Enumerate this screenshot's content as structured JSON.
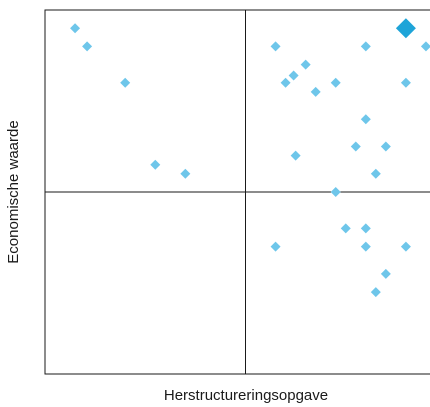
{
  "chart_data": {
    "type": "scatter",
    "title": "",
    "xlabel": "Herstructureringsopgave",
    "ylabel": "Economische waarde",
    "xlim": [
      0,
      10
    ],
    "ylim": [
      0,
      10
    ],
    "grid": false,
    "quadrant_lines": {
      "x": 5,
      "y": 5
    },
    "colors": {
      "points": "#6ec6ea",
      "highlight": "#1ea4d8",
      "axes": "#1a1a1a"
    },
    "points": [
      {
        "x": 0.75,
        "y": 9.5
      },
      {
        "x": 1.05,
        "y": 9.0
      },
      {
        "x": 2.0,
        "y": 8.0
      },
      {
        "x": 2.75,
        "y": 5.75
      },
      {
        "x": 3.5,
        "y": 5.5
      },
      {
        "x": 5.75,
        "y": 9.0
      },
      {
        "x": 6.0,
        "y": 8.0
      },
      {
        "x": 6.2,
        "y": 8.2
      },
      {
        "x": 6.5,
        "y": 8.5
      },
      {
        "x": 6.75,
        "y": 7.75
      },
      {
        "x": 7.25,
        "y": 8.0
      },
      {
        "x": 8.0,
        "y": 9.0
      },
      {
        "x": 9.0,
        "y": 8.0
      },
      {
        "x": 9.5,
        "y": 9.0
      },
      {
        "x": 8.0,
        "y": 7.0
      },
      {
        "x": 7.75,
        "y": 6.25
      },
      {
        "x": 8.5,
        "y": 6.25
      },
      {
        "x": 6.25,
        "y": 6.0
      },
      {
        "x": 8.25,
        "y": 5.5
      },
      {
        "x": 7.25,
        "y": 5.0
      },
      {
        "x": 7.5,
        "y": 4.0
      },
      {
        "x": 8.0,
        "y": 4.0
      },
      {
        "x": 5.75,
        "y": 3.5
      },
      {
        "x": 8.0,
        "y": 3.5
      },
      {
        "x": 9.0,
        "y": 3.5
      },
      {
        "x": 8.5,
        "y": 2.75
      },
      {
        "x": 8.25,
        "y": 2.25
      }
    ],
    "highlight_point": {
      "x": 9.0,
      "y": 9.5
    }
  }
}
